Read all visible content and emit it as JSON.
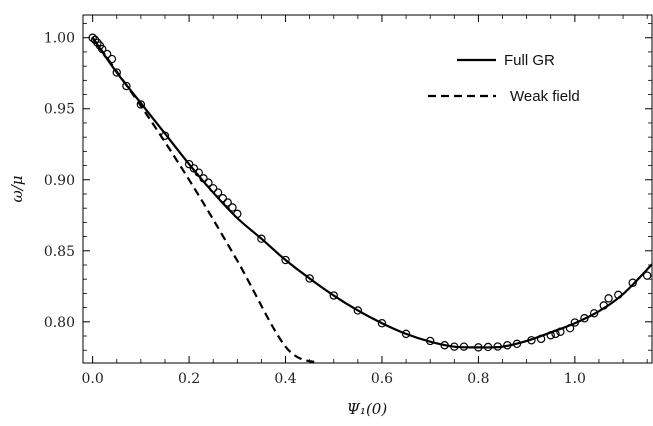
{
  "chart_data": {
    "type": "line",
    "xlabel": "Ψ₁(0)",
    "ylabel": "ω/μ",
    "xlim": [
      -0.02,
      1.16
    ],
    "ylim": [
      0.771,
      1.016
    ],
    "xticks": [
      0.0,
      0.2,
      0.4,
      0.6,
      0.8,
      1.0
    ],
    "xtick_labels": [
      "0.0",
      "0.2",
      "0.4",
      "0.6",
      "0.8",
      "1.0"
    ],
    "yticks": [
      0.8,
      0.85,
      0.9,
      0.95,
      1.0
    ],
    "ytick_labels": [
      "0.80",
      "0.85",
      "0.90",
      "0.95",
      "1.00"
    ],
    "legend_position": "top-right",
    "series": [
      {
        "name": "Full GR",
        "style": "solid",
        "color": "#000000",
        "x": [
          0.0,
          0.05,
          0.1,
          0.15,
          0.2,
          0.25,
          0.3,
          0.35,
          0.4,
          0.45,
          0.5,
          0.55,
          0.6,
          0.65,
          0.7,
          0.75,
          0.8,
          0.85,
          0.9,
          0.95,
          1.0,
          1.05,
          1.1,
          1.16
        ],
        "y": [
          1.0,
          0.9755,
          0.954,
          0.9325,
          0.911,
          0.891,
          0.873,
          0.8585,
          0.8435,
          0.8305,
          0.8185,
          0.808,
          0.799,
          0.7915,
          0.786,
          0.7825,
          0.782,
          0.7825,
          0.7865,
          0.7925,
          0.799,
          0.8075,
          0.8195,
          0.8405
        ]
      },
      {
        "name": "Weak field",
        "style": "dashed",
        "color": "#000000",
        "x": [
          0.0,
          0.1,
          0.2,
          0.3,
          0.4,
          0.468
        ],
        "y": [
          1.0,
          0.952,
          0.9,
          0.843,
          0.7825,
          0.771
        ]
      },
      {
        "name": "",
        "style": "markers",
        "marker": "open-circle",
        "color": "#000000",
        "x": [
          0.0,
          0.005,
          0.01,
          0.015,
          0.02,
          0.03,
          0.04,
          0.05,
          0.07,
          0.1,
          0.15,
          0.2,
          0.21,
          0.22,
          0.23,
          0.24,
          0.25,
          0.26,
          0.27,
          0.28,
          0.29,
          0.3,
          0.35,
          0.4,
          0.45,
          0.5,
          0.55,
          0.6,
          0.65,
          0.7,
          0.73,
          0.75,
          0.77,
          0.8,
          0.82,
          0.84,
          0.86,
          0.88,
          0.91,
          0.93,
          0.95,
          0.96,
          0.97,
          0.99,
          1.0,
          1.02,
          1.04,
          1.06,
          1.07,
          1.09,
          1.12,
          1.15
        ],
        "y": [
          1.0,
          0.9985,
          0.9965,
          0.9945,
          0.992,
          0.9885,
          0.985,
          0.9755,
          0.966,
          0.953,
          0.931,
          0.911,
          0.908,
          0.905,
          0.901,
          0.898,
          0.894,
          0.891,
          0.887,
          0.884,
          0.8805,
          0.876,
          0.8585,
          0.8435,
          0.8305,
          0.8185,
          0.808,
          0.799,
          0.7915,
          0.7865,
          0.7835,
          0.7825,
          0.7825,
          0.782,
          0.7823,
          0.7826,
          0.7835,
          0.7845,
          0.787,
          0.788,
          0.7905,
          0.7915,
          0.793,
          0.7955,
          0.7995,
          0.8025,
          0.806,
          0.8115,
          0.8165,
          0.819,
          0.8275,
          0.8325
        ]
      }
    ]
  }
}
